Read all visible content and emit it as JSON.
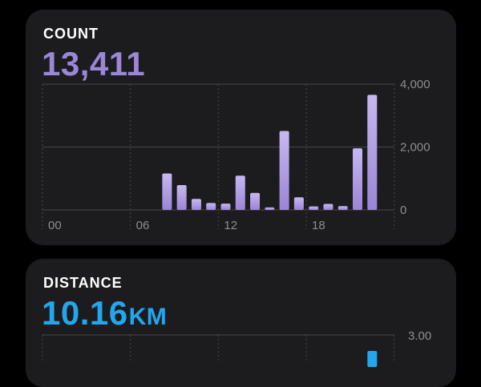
{
  "cards": {
    "count": {
      "title": "COUNT",
      "value": "13,411"
    },
    "distance": {
      "title": "DISTANCE",
      "value": "10.16",
      "unit": "KM"
    }
  },
  "colors": {
    "count_accent": "#9b87d6",
    "distance_accent": "#22a7ee",
    "card_background": "#1c1c1e",
    "page_background": "#000000"
  },
  "chart_data": [
    {
      "type": "bar",
      "title": "COUNT",
      "x": [
        0,
        1,
        2,
        3,
        4,
        5,
        6,
        7,
        8,
        9,
        10,
        11,
        12,
        13,
        14,
        15,
        16,
        17,
        18,
        19,
        20,
        21,
        22,
        23
      ],
      "x_tick_labels": [
        "00",
        "06",
        "12",
        "18"
      ],
      "values": [
        0,
        0,
        0,
        0,
        0,
        0,
        0,
        0,
        1160,
        790,
        350,
        220,
        200,
        1090,
        540,
        80,
        2510,
        400,
        110,
        190,
        120,
        1960,
        3660,
        0
      ],
      "y_tick_labels": [
        "0",
        "2,000",
        "4,000"
      ],
      "ylim": [
        0,
        4000
      ],
      "grid": true,
      "color": "#9b87d6"
    },
    {
      "type": "bar",
      "title": "DISTANCE",
      "y_tick_labels": [
        "3.00"
      ],
      "ylim": [
        0,
        3
      ],
      "grid": true,
      "color": "#22a7ee",
      "note_partial": "chart cut off at bottom of screenshot; only the top of one bar near hour 22 is visible"
    }
  ]
}
